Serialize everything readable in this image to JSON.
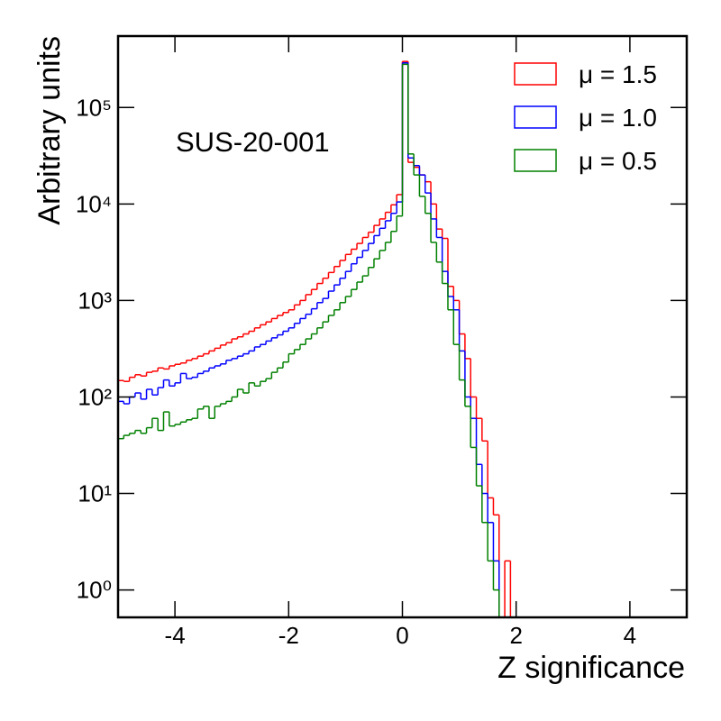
{
  "chart_data": {
    "type": "histogram",
    "x_label": "Z significance",
    "y_label": "Arbitrary units",
    "annotation": "SUS-20-001",
    "log_y": true,
    "legend_position": "upper right",
    "bins": [
      -5,
      -4.9,
      -4.8,
      -4.7,
      -4.6,
      -4.5,
      -4.4,
      -4.3,
      -4.2,
      -4.1,
      -4,
      -3.9,
      -3.8,
      -3.7,
      -3.6,
      -3.5,
      -3.4,
      -3.3,
      -3.2,
      -3.1,
      -3,
      -2.9,
      -2.8,
      -2.7,
      -2.6,
      -2.5,
      -2.4,
      -2.3,
      -2.2,
      -2.1,
      -2,
      -1.9,
      -1.8,
      -1.7,
      -1.6,
      -1.5,
      -1.4,
      -1.3,
      -1.2,
      -1.1,
      -1,
      -0.9,
      -0.8,
      -0.7,
      -0.6,
      -0.5,
      -0.4,
      -0.3,
      -0.2,
      -0.1,
      0,
      0.1,
      0.2,
      0.3,
      0.4,
      0.5,
      0.6,
      0.7,
      0.8,
      0.9,
      1,
      1.1,
      1.2,
      1.3,
      1.4,
      1.5,
      1.6,
      1.7,
      1.8,
      1.9,
      2,
      2.1,
      2.2,
      2.3,
      2.4,
      2.5,
      2.6,
      2.7,
      2.8,
      2.9,
      3,
      3.1,
      3.2,
      3.3,
      3.4,
      3.5,
      3.6,
      3.7,
      3.8,
      3.9,
      4,
      4.1,
      4.2,
      4.3,
      4.4,
      4.5,
      4.6,
      4.7,
      4.8,
      4.9,
      5
    ],
    "series": [
      {
        "name": "μ = 1.5",
        "color": "#ff0000",
        "values": [
          148,
          145,
          160,
          170,
          165,
          180,
          185,
          200,
          195,
          210,
          218,
          225,
          240,
          250,
          265,
          280,
          300,
          320,
          345,
          365,
          400,
          420,
          450,
          480,
          520,
          560,
          600,
          650,
          700,
          750,
          800,
          900,
          1000,
          1150,
          1300,
          1500,
          1700,
          1950,
          2250,
          2600,
          3000,
          3400,
          3900,
          4500,
          5100,
          6000,
          7000,
          8200,
          9800,
          12500,
          300000,
          27000,
          24000,
          20000,
          17000,
          10000,
          5500,
          4400,
          1400,
          1000,
          450,
          250,
          100,
          60,
          35,
          9,
          6,
          null,
          2,
          null,
          null,
          null,
          null,
          null,
          null,
          null,
          null,
          null,
          null,
          null,
          null,
          null,
          null,
          null,
          null,
          null,
          null,
          null,
          null,
          null,
          null,
          null,
          null,
          null,
          null,
          null,
          null,
          null,
          null,
          null
        ]
      },
      {
        "name": "μ = 1.0",
        "color": "#0000ff",
        "values": [
          90,
          85,
          100,
          110,
          95,
          120,
          105,
          125,
          150,
          130,
          140,
          175,
          155,
          160,
          175,
          185,
          200,
          210,
          220,
          240,
          250,
          265,
          280,
          300,
          330,
          350,
          380,
          410,
          440,
          480,
          520,
          580,
          650,
          720,
          820,
          950,
          1050,
          1250,
          1450,
          1700,
          2000,
          2400,
          2800,
          3300,
          3900,
          4700,
          5600,
          6700,
          8000,
          10500,
          290000,
          30000,
          25000,
          20000,
          13000,
          7000,
          4500,
          2000,
          1100,
          800,
          300,
          100,
          60,
          20,
          10,
          5,
          2,
          null,
          null,
          null,
          null,
          null,
          null,
          null,
          null,
          null,
          null,
          null,
          null,
          null,
          null,
          null,
          null,
          null,
          null,
          null,
          null,
          null,
          null,
          null,
          null,
          null,
          null,
          null,
          null,
          null,
          null,
          null,
          null,
          null
        ]
      },
      {
        "name": "μ = 0.5",
        "color": "#008000",
        "values": [
          37,
          40,
          42,
          45,
          42,
          48,
          60,
          45,
          70,
          50,
          52,
          55,
          58,
          60,
          75,
          80,
          60,
          80,
          85,
          90,
          100,
          120,
          110,
          140,
          130,
          145,
          155,
          180,
          200,
          230,
          280,
          310,
          350,
          400,
          450,
          520,
          600,
          700,
          800,
          950,
          1100,
          1300,
          1550,
          1800,
          2200,
          2700,
          3300,
          4000,
          5200,
          7500,
          280000,
          33000,
          20000,
          12000,
          8000,
          4000,
          2500,
          1500,
          800,
          350,
          150,
          80,
          30,
          12,
          5,
          2,
          1,
          null,
          null,
          null,
          null,
          null,
          null,
          null,
          null,
          null,
          null,
          null,
          null,
          null,
          null,
          null,
          null,
          null,
          null,
          null,
          null,
          null,
          null,
          null,
          null,
          null,
          null,
          null,
          null,
          null,
          null,
          null,
          null,
          null
        ]
      }
    ],
    "xlim": [
      -5,
      5
    ],
    "xticks": [
      -4,
      -2,
      0,
      2,
      4
    ],
    "ylim": [
      0.52,
      550000
    ],
    "yticks": [
      {
        "value": 1,
        "label": "10⁰"
      },
      {
        "value": 10,
        "label": "10¹"
      },
      {
        "value": 100,
        "label": "10²"
      },
      {
        "value": 1000,
        "label": "10³"
      },
      {
        "value": 10000,
        "label": "10⁴"
      },
      {
        "value": 100000,
        "label": "10⁵"
      }
    ]
  }
}
